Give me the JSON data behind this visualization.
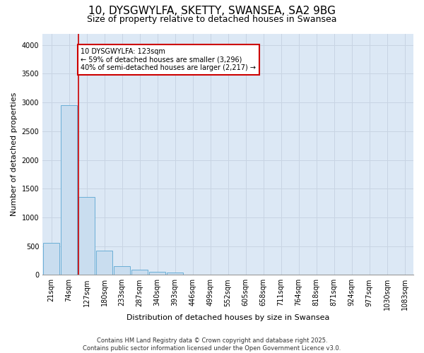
{
  "title_line1": "10, DYSGWYLFA, SKETTY, SWANSEA, SA2 9BG",
  "title_line2": "Size of property relative to detached houses in Swansea",
  "xlabel": "Distribution of detached houses by size in Swansea",
  "ylabel": "Number of detached properties",
  "footnote": "Contains HM Land Registry data © Crown copyright and database right 2025.\nContains public sector information licensed under the Open Government Licence v3.0.",
  "bin_labels": [
    "21sqm",
    "74sqm",
    "127sqm",
    "180sqm",
    "233sqm",
    "287sqm",
    "340sqm",
    "393sqm",
    "446sqm",
    "499sqm",
    "552sqm",
    "605sqm",
    "658sqm",
    "711sqm",
    "764sqm",
    "818sqm",
    "871sqm",
    "924sqm",
    "977sqm",
    "1030sqm",
    "1083sqm"
  ],
  "bar_values": [
    560,
    2950,
    1350,
    420,
    155,
    90,
    55,
    35,
    5,
    0,
    0,
    0,
    0,
    0,
    0,
    0,
    0,
    0,
    0,
    0,
    0
  ],
  "bar_color": "#c9ddef",
  "bar_edge_color": "#6aaed6",
  "vline_color": "#cc0000",
  "vline_x_index": 2,
  "annotation_text": "10 DYSGWYLFA: 123sqm\n← 59% of detached houses are smaller (3,296)\n40% of semi-detached houses are larger (2,217) →",
  "annotation_box_facecolor": "#ffffff",
  "annotation_box_edgecolor": "#cc0000",
  "ylim": [
    0,
    4200
  ],
  "yticks": [
    0,
    500,
    1000,
    1500,
    2000,
    2500,
    3000,
    3500,
    4000
  ],
  "grid_color": "#c8d4e3",
  "plot_bg_color": "#dce8f5",
  "fig_bg_color": "#ffffff",
  "title1_fontsize": 11,
  "title2_fontsize": 9,
  "axis_label_fontsize": 8,
  "tick_fontsize": 7,
  "annot_fontsize": 7,
  "footnote_fontsize": 6
}
